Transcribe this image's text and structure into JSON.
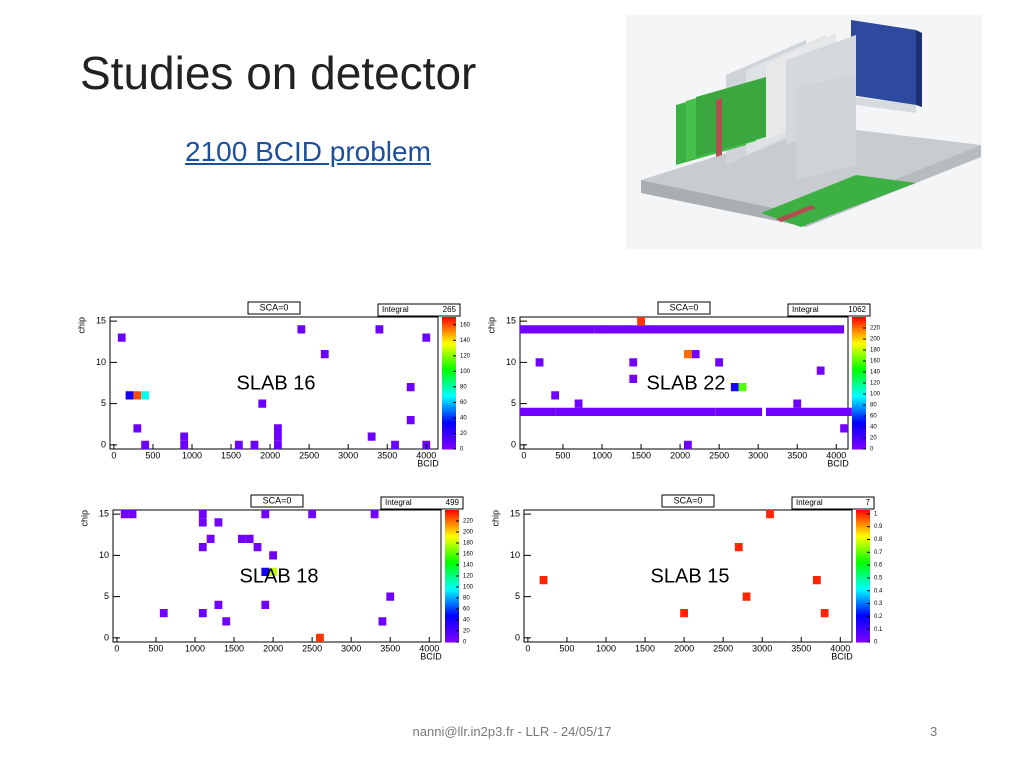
{
  "slide": {
    "title": "Studies on detector",
    "subtitle": "2100 BCID problem",
    "footer": "nanni@llr.in2p3.fr - LLR - 24/05/17",
    "page_number": 3
  },
  "chart_data": [
    {
      "type": "heatmap",
      "title": "SCA=0",
      "stats_label": "Integral",
      "stats_value": 265,
      "label": "SLAB 16",
      "xlabel": "BCID",
      "ylabel": "chip",
      "xlim": [
        -50,
        4150
      ],
      "ylim": [
        -0.5,
        15.5
      ],
      "xticks": [
        0,
        500,
        1000,
        1500,
        2000,
        2500,
        3000,
        3500,
        4000
      ],
      "yticks": [
        0,
        5,
        10,
        15
      ],
      "zlim": [
        0,
        170
      ],
      "zticks": [
        0,
        20,
        40,
        60,
        80,
        100,
        120,
        140,
        160
      ],
      "points": {
        "x": [
          100,
          2400,
          3400,
          4000,
          2700,
          3800,
          200,
          300,
          400,
          1900,
          3800,
          300,
          3300,
          400,
          900,
          900,
          1600,
          1800,
          2100,
          2100,
          2100,
          3600,
          4000
        ],
        "y": [
          13,
          14,
          14,
          13,
          11,
          7,
          6,
          6,
          6,
          5,
          3,
          2,
          1,
          0,
          1,
          0,
          0,
          0,
          2,
          1,
          0,
          0,
          0
        ],
        "z": [
          5,
          5,
          5,
          5,
          5,
          5,
          30,
          160,
          70,
          5,
          5,
          5,
          5,
          5,
          5,
          5,
          5,
          5,
          5,
          5,
          5,
          5,
          5
        ]
      }
    },
    {
      "type": "heatmap",
      "title": "SCA=0",
      "stats_label": "Integral",
      "stats_value": 1062,
      "label": "SLAB 22",
      "xlabel": "BCID",
      "ylabel": "chip",
      "xlim": [
        -50,
        4150
      ],
      "ylim": [
        -0.5,
        15.5
      ],
      "xticks": [
        0,
        500,
        1000,
        1500,
        2000,
        2500,
        3000,
        3500,
        4000
      ],
      "yticks": [
        0,
        5,
        10,
        15
      ],
      "zlim": [
        0,
        240
      ],
      "zticks": [
        0,
        20,
        40,
        60,
        80,
        100,
        120,
        140,
        160,
        180,
        200,
        220
      ],
      "points": {
        "x": [
          1500,
          200,
          1400,
          2500,
          2100,
          2200,
          1400,
          3800,
          2700,
          2800,
          400,
          700,
          3500,
          4100,
          2100
        ],
        "y": [
          15,
          10,
          10,
          10,
          11,
          11,
          8,
          9,
          7,
          7,
          6,
          5,
          5,
          2,
          0
        ],
        "z": [
          230,
          5,
          5,
          5,
          220,
          5,
          5,
          5,
          40,
          160,
          5,
          5,
          5,
          5,
          5
        ]
      },
      "bands": {
        "chip": [
          14,
          14,
          4,
          4,
          4,
          4
        ],
        "from": [
          0,
          950,
          0,
          450,
          2500,
          3150
        ],
        "to": [
          850,
          4050,
          350,
          2400,
          3000,
          4150
        ],
        "z": [
          5,
          5,
          5,
          5,
          5,
          5
        ]
      }
    },
    {
      "type": "heatmap",
      "title": "SCA=0",
      "stats_label": "Integral",
      "stats_value": 499,
      "label": "SLAB 18",
      "xlabel": "BCID",
      "ylabel": "chip",
      "xlim": [
        -50,
        4150
      ],
      "ylim": [
        -0.5,
        15.5
      ],
      "xticks": [
        0,
        500,
        1000,
        1500,
        2000,
        2500,
        3000,
        3500,
        4000
      ],
      "yticks": [
        0,
        5,
        10,
        15
      ],
      "zlim": [
        0,
        240
      ],
      "zticks": [
        0,
        20,
        40,
        60,
        80,
        100,
        120,
        140,
        160,
        180,
        200,
        220
      ],
      "points": {
        "x": [
          100,
          200,
          1100,
          1900,
          2500,
          3300,
          1100,
          1300,
          1200,
          1100,
          1600,
          1700,
          1800,
          2000,
          1900,
          2000,
          3500,
          1300,
          1900,
          600,
          1100,
          1400,
          3400,
          2600
        ],
        "y": [
          15,
          15,
          15,
          15,
          15,
          15,
          14,
          14,
          12,
          11,
          12,
          12,
          11,
          10,
          8,
          8,
          5,
          4,
          4,
          3,
          3,
          2,
          2,
          0
        ],
        "z": [
          5,
          5,
          5,
          5,
          5,
          5,
          5,
          5,
          5,
          5,
          5,
          5,
          5,
          5,
          40,
          180,
          5,
          5,
          5,
          5,
          5,
          5,
          5,
          230
        ]
      }
    },
    {
      "type": "heatmap",
      "title": "SCA=0",
      "stats_label": "Integral",
      "stats_value": 7,
      "label": "SLAB 15",
      "xlabel": "BCID",
      "ylabel": "chip",
      "xlim": [
        -50,
        4150
      ],
      "ylim": [
        -0.5,
        15.5
      ],
      "xticks": [
        0,
        500,
        1000,
        1500,
        2000,
        2500,
        3000,
        3500,
        4000
      ],
      "yticks": [
        0,
        5,
        10,
        15
      ],
      "zlim": [
        0,
        1.03
      ],
      "zticks": [
        0,
        0.1,
        0.2,
        0.3,
        0.4,
        0.5,
        0.6,
        0.7,
        0.8,
        0.9,
        1
      ],
      "points": {
        "x": [
          200,
          2000,
          2700,
          2800,
          3100,
          3700,
          3800
        ],
        "y": [
          7,
          3,
          11,
          5,
          15,
          7,
          3
        ],
        "z": [
          1,
          1,
          1,
          1,
          1,
          1,
          1
        ]
      }
    }
  ]
}
